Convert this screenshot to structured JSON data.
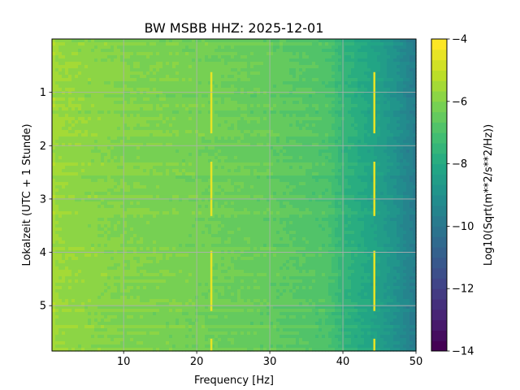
{
  "chart_data": {
    "type": "heatmap",
    "title": "BW MSBB  HHZ: 2025-12-01",
    "xlabel": "Frequency [Hz]",
    "ylabel": "Lokalzeit (UTC + 1 Stunde)",
    "xlim": [
      0.2,
      50
    ],
    "ylim": [
      5.85,
      0
    ],
    "x_ticks": [
      10,
      20,
      30,
      40,
      50
    ],
    "y_ticks": [
      1,
      2,
      3,
      4,
      5
    ],
    "grid": true,
    "colorbar": {
      "label": "Log10(Sqrt(m**2/s**2/Hz))",
      "range": [
        -14,
        -4
      ],
      "ticks": [
        -4,
        -6,
        -8,
        -10,
        -12,
        -14
      ],
      "colormap": "viridis",
      "levels": 30
    },
    "features": [
      {
        "name": "spectral-line",
        "frequency": 22,
        "y_ranges": [
          [
            0.62,
            1.77
          ],
          [
            2.3,
            3.32
          ],
          [
            3.97,
            5.1
          ],
          [
            5.62,
            5.85
          ]
        ]
      },
      {
        "name": "spectral-line",
        "frequency": 44.3,
        "y_ranges": [
          [
            0.62,
            1.77
          ],
          [
            2.3,
            3.32
          ],
          [
            3.97,
            5.1
          ],
          [
            5.62,
            5.85
          ]
        ]
      }
    ],
    "background": {
      "description": "power decreases with frequency",
      "profile": [
        {
          "frequency": 0.2,
          "value": -5.4
        },
        {
          "frequency": 1,
          "value": -5.7
        },
        {
          "frequency": 10,
          "value": -6.0
        },
        {
          "frequency": 20,
          "value": -6.2
        },
        {
          "frequency": 30,
          "value": -6.5
        },
        {
          "frequency": 38,
          "value": -6.9
        },
        {
          "frequency": 40,
          "value": -7.5
        },
        {
          "frequency": 44,
          "value": -8.2
        },
        {
          "frequency": 47,
          "value": -8.9
        },
        {
          "frequency": 50,
          "value": -9.8
        }
      ]
    }
  }
}
